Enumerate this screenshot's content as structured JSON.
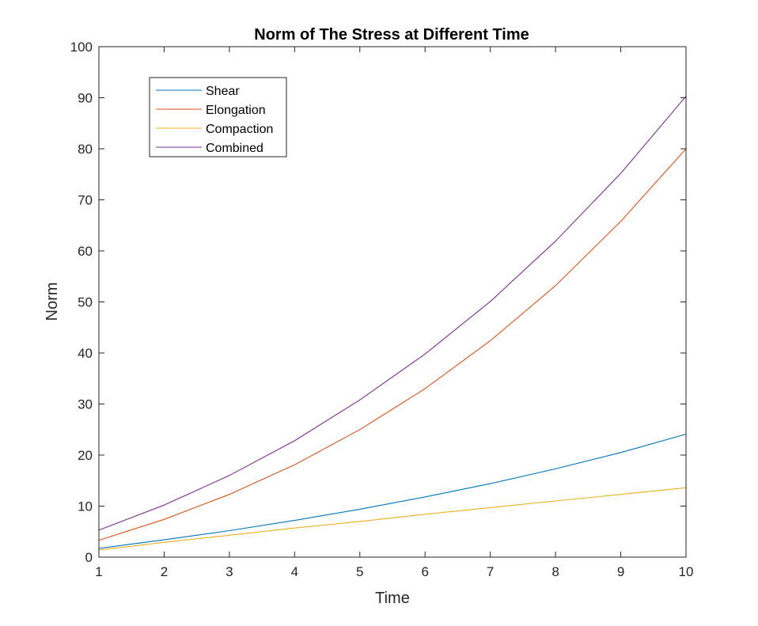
{
  "chart_data": {
    "type": "line",
    "title": "Norm of The Stress at Different Time",
    "xlabel": "Time",
    "ylabel": "Norm",
    "xlim": [
      1,
      10
    ],
    "ylim": [
      0,
      100
    ],
    "x_ticks": [
      1,
      2,
      3,
      4,
      5,
      6,
      7,
      8,
      9,
      10
    ],
    "y_ticks": [
      0,
      10,
      20,
      30,
      40,
      50,
      60,
      70,
      80,
      90,
      100
    ],
    "grid": false,
    "legend_position": "top-left",
    "x": [
      1,
      2,
      3,
      4,
      5,
      6,
      7,
      8,
      9,
      10
    ],
    "series": [
      {
        "name": "Shear",
        "color": "#0072BD",
        "values": [
          1.7,
          3.4,
          5.2,
          7.2,
          9.4,
          11.8,
          14.4,
          17.3,
          20.5,
          24.1
        ]
      },
      {
        "name": "Elongation",
        "color": "#D95319",
        "values": [
          3.3,
          7.4,
          12.3,
          18.1,
          25.0,
          33.0,
          42.4,
          53.2,
          65.8,
          80.0
        ]
      },
      {
        "name": "Compaction",
        "color": "#EDB120",
        "values": [
          1.4,
          2.9,
          4.3,
          5.7,
          7.0,
          8.4,
          9.7,
          11.0,
          12.3,
          13.6
        ]
      },
      {
        "name": "Combined",
        "color": "#7E2F8E",
        "values": [
          5.3,
          10.2,
          16.0,
          22.8,
          30.8,
          39.8,
          50.1,
          61.9,
          75.2,
          90.3
        ]
      }
    ]
  }
}
